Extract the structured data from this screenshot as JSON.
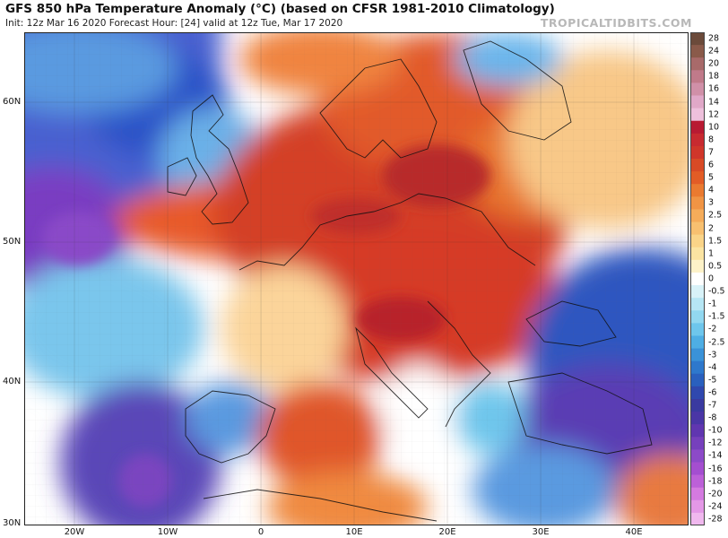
{
  "header": {
    "title": "GFS 850 hPa Temperature Anomaly (°C) (based on CFSR 1981-2010 Climatology)",
    "subtitle": "Init: 12z Mar 16 2020   Forecast Hour: [24]   valid at 12z Tue, Mar 17 2020",
    "brand": "TROPICALTIDBITS.COM"
  },
  "map": {
    "lat_ticks": [
      "60N",
      "50N",
      "40N",
      "30N"
    ],
    "lon_ticks": [
      "20W",
      "10W",
      "0",
      "10E",
      "20E",
      "30E",
      "40E"
    ]
  },
  "colorbar": {
    "labels": [
      "28",
      "24",
      "20",
      "18",
      "16",
      "14",
      "12",
      "10",
      "8",
      "7",
      "6",
      "5",
      "4",
      "3",
      "2.5",
      "2",
      "1.5",
      "1",
      "0.5",
      "0",
      "-0.5",
      "-1",
      "-1.5",
      "-2",
      "-2.5",
      "-3",
      "-4",
      "-5",
      "-6",
      "-7",
      "-8",
      "-10",
      "-12",
      "-14",
      "-16",
      "-18",
      "-20",
      "-24",
      "-28"
    ],
    "colors": [
      "#6b4a3a",
      "#8a5a4a",
      "#a86a6a",
      "#c07a8a",
      "#d090a8",
      "#e0a8c8",
      "#eec0dc",
      "#b81a32",
      "#c82a30",
      "#d0362a",
      "#d84a26",
      "#e25c26",
      "#ea7a30",
      "#f09444",
      "#f5ac5a",
      "#f8c070",
      "#fad488",
      "#fbe4a2",
      "#fdf2c8",
      "#ffffff",
      "#d8f2f8",
      "#b6e6f4",
      "#92d8f0",
      "#6ec6ec",
      "#4eaee4",
      "#3a92d8",
      "#2e78cc",
      "#2a60be",
      "#3048ae",
      "#3a3aa0",
      "#4a36a6",
      "#6036b0",
      "#7640bc",
      "#8c4ac8",
      "#a44ed0",
      "#bc60d8",
      "#d47ae0",
      "#e498e6",
      "#f0b8ee"
    ]
  }
}
